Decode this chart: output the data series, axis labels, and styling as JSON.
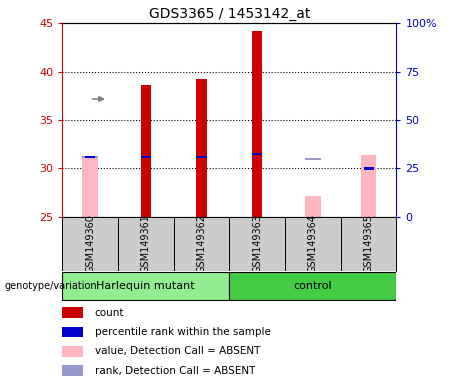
{
  "title": "GDS3365 / 1453142_at",
  "samples": [
    "GSM149360",
    "GSM149361",
    "GSM149362",
    "GSM149363",
    "GSM149364",
    "GSM149365"
  ],
  "ylim_left": [
    25,
    45
  ],
  "ylim_right": [
    0,
    100
  ],
  "yticks_left": [
    25,
    30,
    35,
    40,
    45
  ],
  "yticks_right": [
    0,
    25,
    50,
    75,
    100
  ],
  "ytick_right_labels": [
    "0",
    "25",
    "50",
    "75",
    "100%"
  ],
  "count_values": [
    null,
    38.6,
    39.2,
    44.2,
    null,
    null
  ],
  "rank_values": [
    31.2,
    31.2,
    31.2,
    31.5,
    null,
    30.0
  ],
  "absent_value_values": [
    31.1,
    null,
    null,
    null,
    27.2,
    31.4
  ],
  "absent_rank_values": [
    30.8,
    null,
    null,
    null,
    29.8,
    null
  ],
  "count_color": "#CC0000",
  "rank_color": "#0000CC",
  "absent_value_color": "#FFB6C1",
  "absent_rank_color": "#9999CC",
  "bar_width": 0.18,
  "absent_bar_width": 0.28,
  "left_axis_color": "#CC0000",
  "right_axis_color": "#0000CC",
  "sample_bg_color": "#CCCCCC",
  "group1_color": "#90EE90",
  "group2_color": "#44CC44",
  "group1_label": "Harlequin mutant",
  "group2_label": "control",
  "harlequin_indices": [
    0,
    1,
    2
  ],
  "control_indices": [
    3,
    4,
    5
  ]
}
